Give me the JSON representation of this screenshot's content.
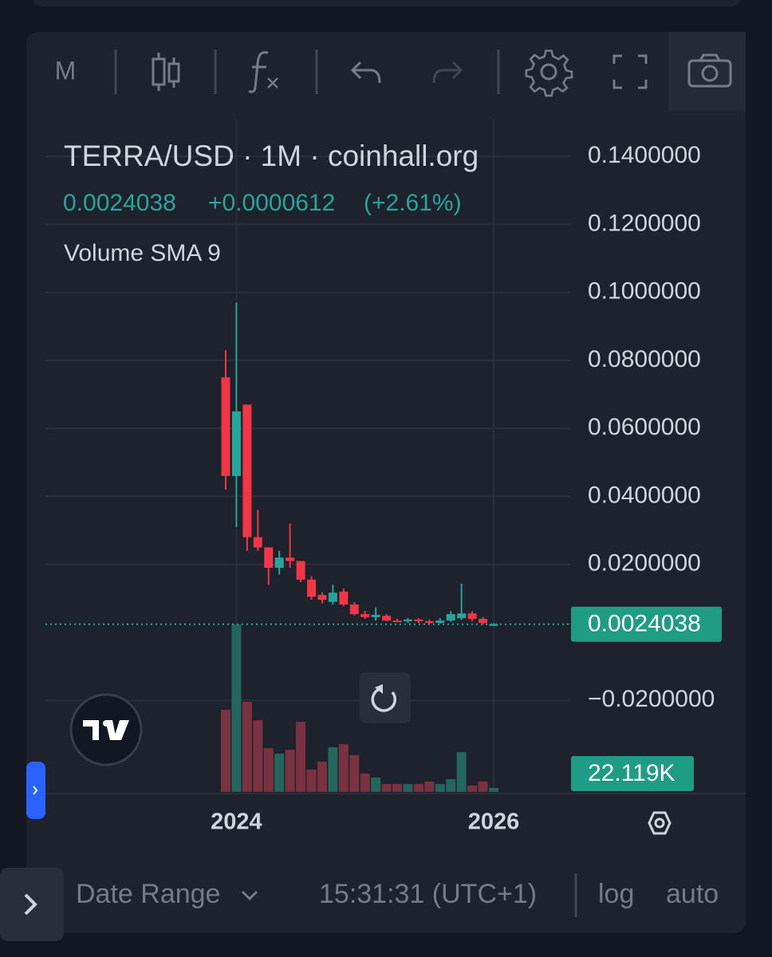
{
  "toolbar": {
    "interval": "M"
  },
  "legend": {
    "title": "TERRA/USD · 1M · coinhall.org",
    "change": "+0.0000612",
    "change_pct": "(+2.61%)",
    "indicator": "Volume SMA 9"
  },
  "chart_data": {
    "type": "candlestick",
    "categories": [
      null,
      null,
      null,
      null,
      null,
      null,
      null,
      null,
      null,
      null,
      null,
      null,
      null,
      null,
      null,
      null,
      null,
      null,
      null,
      null,
      null,
      null,
      null,
      null,
      null,
      null
    ],
    "open": [
      0.075,
      0.046,
      0.067,
      0.028,
      0.025,
      0.019,
      0.022,
      0.021,
      0.0155,
      0.011,
      0.009,
      0.012,
      0.0082,
      0.0054,
      0.0045,
      0.0049,
      0.0035,
      0.0033,
      0.0038,
      0.0033,
      0.0028,
      0.0035,
      0.0042,
      0.0056,
      0.004,
      0.0023426
    ],
    "high": [
      0.083,
      0.097,
      0.067,
      0.036,
      0.025,
      0.024,
      0.032,
      0.021,
      0.0165,
      0.0118,
      0.014,
      0.0129,
      0.0089,
      0.0063,
      0.0073,
      0.0054,
      0.004,
      0.0042,
      0.0042,
      0.0038,
      0.0042,
      0.0063,
      0.0143,
      0.0063,
      0.0045,
      0.0027
    ],
    "low": [
      0.042,
      0.031,
      0.024,
      0.024,
      0.014,
      0.017,
      0.019,
      0.0148,
      0.0096,
      0.0085,
      0.0082,
      0.0077,
      0.005,
      0.004,
      0.0035,
      0.0033,
      0.003,
      0.0028,
      0.0028,
      0.0026,
      0.0026,
      0.0031,
      0.0037,
      0.0033,
      0.0023,
      0.0022
    ],
    "close": [
      0.046,
      0.065,
      0.028,
      0.025,
      0.019,
      0.022,
      0.021,
      0.0155,
      0.0105,
      0.0096,
      0.0117,
      0.0082,
      0.0054,
      0.0045,
      0.0052,
      0.0035,
      0.0033,
      0.0038,
      0.0033,
      0.0028,
      0.0035,
      0.0054,
      0.0056,
      0.004,
      0.0028,
      0.0024038
    ],
    "volume": {
      "name": "Volume",
      "values": [
        456000,
        929000,
        500000,
        398000,
        243000,
        212000,
        234000,
        389000,
        124000,
        168000,
        248000,
        265000,
        204000,
        102000,
        80000,
        44000,
        44000,
        44000,
        44000,
        58000,
        44000,
        71000,
        221000,
        35000,
        58000,
        22119
      ],
      "value_labels": [
        null,
        null,
        null,
        null,
        null,
        null,
        null,
        null,
        null,
        null,
        null,
        null,
        null,
        null,
        null,
        null,
        null,
        null,
        null,
        null,
        null,
        null,
        null,
        null,
        null,
        "22.119K"
      ]
    },
    "up_color": "#26a69a",
    "down_color": "#f23645",
    "volume_up_color": "#22665d",
    "volume_down_color": "#7b3240",
    "ylim": [
      -0.0469,
      0.1508
    ],
    "vlim": [
      0,
      1000000
    ],
    "yticks": [
      {
        "value": 0.14,
        "label": "0.1400000"
      },
      {
        "value": 0.12,
        "label": "0.1200000"
      },
      {
        "value": 0.1,
        "label": "0.1000000"
      },
      {
        "value": 0.08,
        "label": "0.0800000"
      },
      {
        "value": 0.06,
        "label": "0.0600000"
      },
      {
        "value": 0.04,
        "label": "0.0400000"
      },
      {
        "value": 0.02,
        "label": "0.0200000"
      },
      {
        "value": -0.02,
        "label": "−0.0200000"
      }
    ],
    "xticks": [
      {
        "value": 1,
        "label": "2024"
      },
      {
        "value": 25,
        "label": "2026"
      }
    ],
    "grid": true
  },
  "footer": {
    "date_range": "Date Range",
    "time": "15:31:31 (UTC+1)",
    "log": "log",
    "auto": "auto"
  }
}
